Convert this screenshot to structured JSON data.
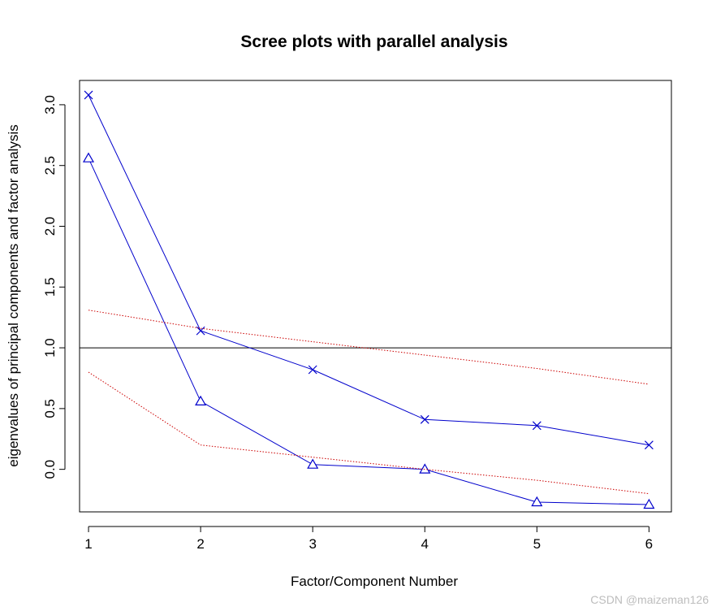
{
  "chart_data": {
    "type": "line",
    "title": "Scree plots with parallel analysis",
    "xlabel": "Factor/Component Number",
    "ylabel": "eigenvalues of principal components and factor analysis",
    "x": [
      1,
      2,
      3,
      4,
      5,
      6
    ],
    "xticks": [
      "1",
      "2",
      "3",
      "4",
      "5",
      "6"
    ],
    "yticks": [
      "0.0",
      "0.5",
      "1.0",
      "1.5",
      "2.0",
      "2.5",
      "3.0"
    ],
    "xlim": [
      0.92,
      6.2
    ],
    "ylim": [
      -0.35,
      3.2
    ],
    "reference_line": 1.0,
    "series": [
      {
        "marker": "x",
        "line_style": "solid",
        "color": "#0000cc",
        "values": [
          3.08,
          1.14,
          0.82,
          0.41,
          0.36,
          0.2
        ]
      },
      {
        "marker": "triangle",
        "line_style": "solid",
        "color": "#0000cc",
        "values": [
          2.56,
          0.56,
          0.04,
          0.0,
          -0.27,
          -0.29
        ]
      },
      {
        "marker": "none",
        "line_style": "dotted",
        "color": "#cc0000",
        "values": [
          1.31,
          1.16,
          1.05,
          0.94,
          0.83,
          0.7
        ]
      },
      {
        "marker": "none",
        "line_style": "dotted",
        "color": "#cc0000",
        "values": [
          0.8,
          0.2,
          0.1,
          0.0,
          -0.09,
          -0.2
        ]
      }
    ],
    "grid": false,
    "legend": "none"
  },
  "colors": {
    "blue": "#0000cc",
    "red": "#cc0000",
    "axis": "#000000"
  },
  "watermark": "CSDN @maizeman126"
}
